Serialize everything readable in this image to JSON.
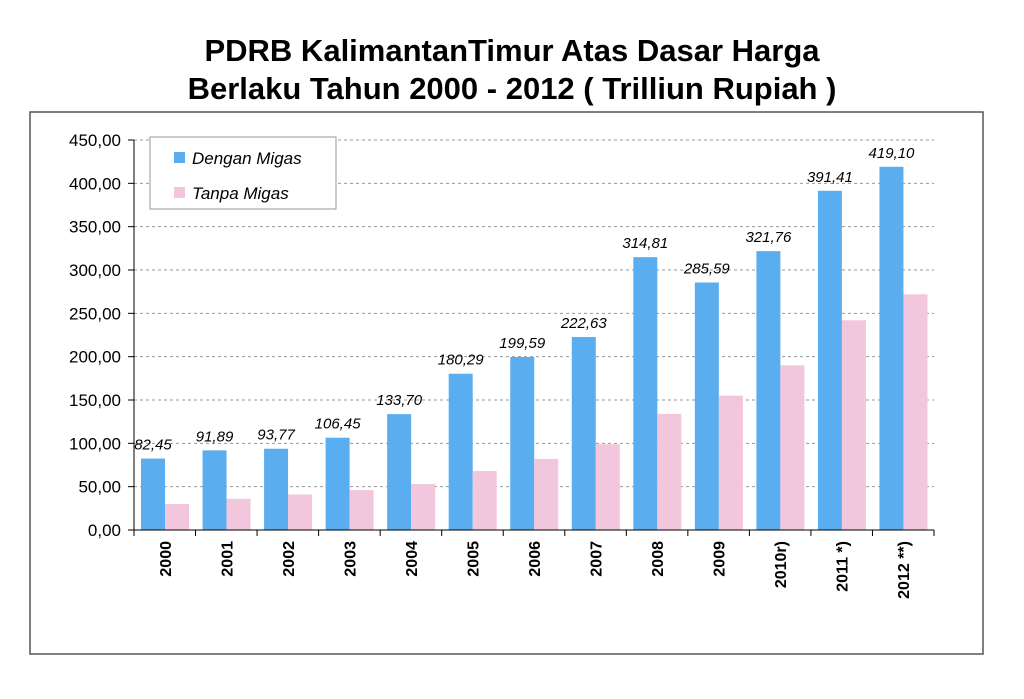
{
  "title_line1": "PDRB KalimantanTimur Atas Dasar Harga",
  "title_line2": "Berlaku Tahun 2000 - 2012 ( Trilliun Rupiah )",
  "chart_data": {
    "type": "bar",
    "title": "PDRB KalimantanTimur Atas Dasar Harga Berlaku Tahun 2000 - 2012 ( Trilliun Rupiah )",
    "xlabel": "",
    "ylabel": "",
    "categories": [
      "2000",
      "2001",
      "2002",
      "2003",
      "2004",
      "2005",
      "2006",
      "2007",
      "2008",
      "2009",
      "2010r)",
      "2011 *)",
      "2012 **)"
    ],
    "ylim": [
      0,
      450
    ],
    "yticks": [
      "0,00",
      "50,00",
      "100,00",
      "150,00",
      "200,00",
      "250,00",
      "300,00",
      "350,00",
      "400,00",
      "450,00"
    ],
    "grid": true,
    "legend_position": "top-left",
    "series": [
      {
        "name": "Dengan Migas",
        "color": "#5aaef0",
        "values": [
          82.45,
          91.89,
          93.77,
          106.45,
          133.7,
          180.29,
          199.59,
          222.63,
          314.81,
          285.59,
          321.76,
          391.41,
          419.1
        ],
        "labels": [
          "82,45",
          "91,89",
          "93,77",
          "106,45",
          "133,70",
          "180,29",
          "199,59",
          "222,63",
          "314,81",
          "285,59",
          "321,76",
          "391,41",
          "419,10"
        ]
      },
      {
        "name": "Tanpa Migas",
        "color": "#f2c6dc",
        "values": [
          30,
          36,
          41,
          46,
          53,
          68,
          82,
          99,
          134,
          155,
          190,
          242,
          272
        ]
      }
    ]
  }
}
